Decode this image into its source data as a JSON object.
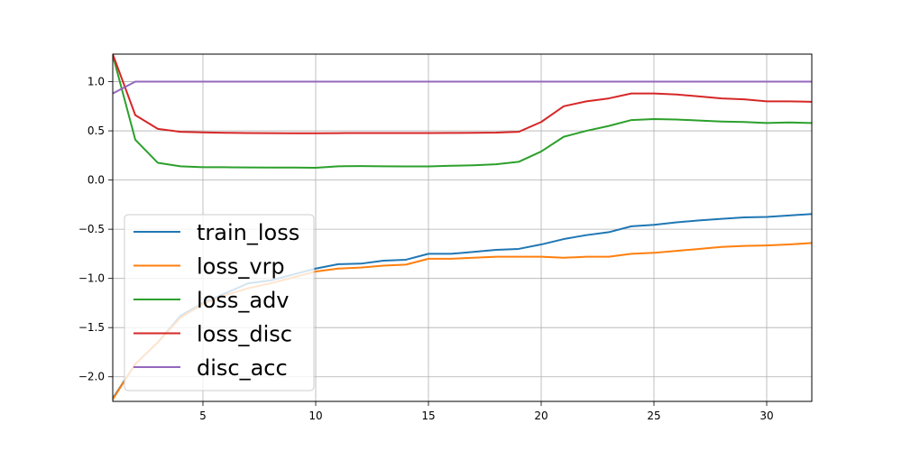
{
  "chart_data": {
    "type": "line",
    "title": "",
    "xlabel": "",
    "ylabel": "",
    "xlim": [
      1,
      32
    ],
    "ylim": [
      -2.25,
      1.28
    ],
    "grid": true,
    "legend_placement": "lower-left",
    "x_ticks": [
      5,
      10,
      15,
      20,
      25,
      30
    ],
    "y_ticks": [
      1.0,
      0.5,
      0.0,
      -0.5,
      -1.0,
      -1.5,
      -2.0
    ],
    "x_tick_labels": [
      "5",
      "10",
      "15",
      "20",
      "25",
      "30"
    ],
    "y_tick_labels": [
      "1.0",
      "0.5",
      "0.0",
      "−0.5",
      "−1.0",
      "−1.5",
      "−2.0"
    ],
    "x": [
      1,
      2,
      3,
      4,
      5,
      6,
      7,
      8,
      9,
      10,
      11,
      12,
      13,
      14,
      15,
      16,
      17,
      18,
      19,
      20,
      21,
      22,
      23,
      24,
      25,
      26,
      27,
      28,
      29,
      30,
      31,
      32
    ],
    "series": [
      {
        "name": "train_loss",
        "color": "#1f77b4",
        "values": [
          -2.22,
          -1.87,
          -1.65,
          -1.38,
          -1.25,
          -1.15,
          -1.05,
          -1.02,
          -0.96,
          -0.9,
          -0.855,
          -0.85,
          -0.82,
          -0.81,
          -0.75,
          -0.75,
          -0.73,
          -0.71,
          -0.7,
          -0.655,
          -0.6,
          -0.56,
          -0.53,
          -0.47,
          -0.455,
          -0.43,
          -0.41,
          -0.395,
          -0.38,
          -0.375,
          -0.36,
          -0.345
        ]
      },
      {
        "name": "loss_vrp",
        "color": "#ff7f0e",
        "values": [
          -2.23,
          -1.87,
          -1.65,
          -1.4,
          -1.26,
          -1.17,
          -1.1,
          -1.05,
          -0.99,
          -0.93,
          -0.9,
          -0.89,
          -0.87,
          -0.86,
          -0.8,
          -0.8,
          -0.79,
          -0.78,
          -0.78,
          -0.78,
          -0.79,
          -0.78,
          -0.78,
          -0.75,
          -0.74,
          -0.72,
          -0.7,
          -0.68,
          -0.67,
          -0.665,
          -0.655,
          -0.64
        ]
      },
      {
        "name": "loss_adv",
        "color": "#2ca02c",
        "values": [
          1.27,
          0.41,
          0.175,
          0.14,
          0.13,
          0.13,
          0.128,
          0.127,
          0.127,
          0.125,
          0.14,
          0.142,
          0.14,
          0.138,
          0.138,
          0.145,
          0.15,
          0.16,
          0.185,
          0.29,
          0.44,
          0.5,
          0.55,
          0.61,
          0.62,
          0.615,
          0.605,
          0.595,
          0.59,
          0.58,
          0.585,
          0.58
        ]
      },
      {
        "name": "loss_disc",
        "color": "#d62728",
        "values": [
          1.28,
          0.66,
          0.52,
          0.49,
          0.485,
          0.48,
          0.478,
          0.477,
          0.476,
          0.476,
          0.477,
          0.478,
          0.478,
          0.478,
          0.478,
          0.479,
          0.48,
          0.482,
          0.49,
          0.59,
          0.75,
          0.8,
          0.83,
          0.88,
          0.88,
          0.87,
          0.85,
          0.83,
          0.82,
          0.8,
          0.8,
          0.795
        ]
      },
      {
        "name": "disc_acc",
        "color": "#9467bd",
        "values": [
          0.88,
          1.0,
          1.0,
          1.0,
          1.0,
          1.0,
          1.0,
          1.0,
          1.0,
          1.0,
          1.0,
          1.0,
          1.0,
          1.0,
          1.0,
          1.0,
          1.0,
          1.0,
          1.0,
          1.0,
          1.0,
          1.0,
          1.0,
          1.0,
          1.0,
          1.0,
          1.0,
          1.0,
          1.0,
          1.0,
          1.0,
          1.0
        ]
      }
    ]
  }
}
